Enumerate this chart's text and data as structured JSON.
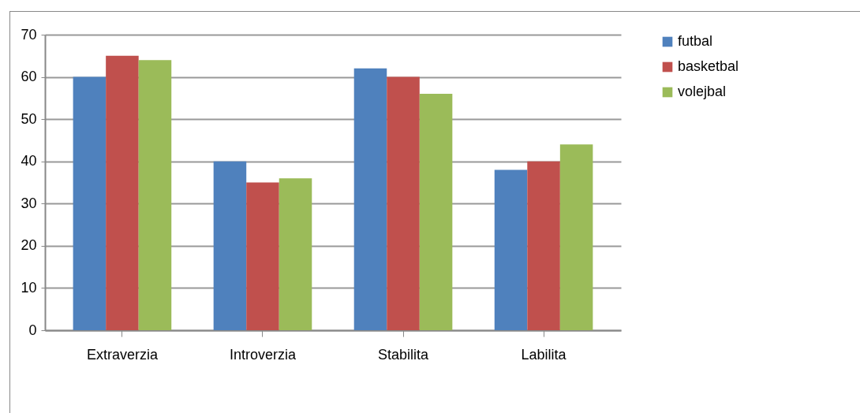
{
  "chart_data": {
    "type": "bar",
    "categories": [
      "Extraverzia",
      "Introverzia",
      "Stabilita",
      "Labilita"
    ],
    "series": [
      {
        "name": "futbal",
        "color": "#4f81bd",
        "values": [
          60,
          40,
          62,
          38
        ]
      },
      {
        "name": "basketbal",
        "color": "#c0504d",
        "values": [
          65,
          35,
          60,
          40
        ]
      },
      {
        "name": "volejbal",
        "color": "#9bbb59",
        "values": [
          64,
          36,
          56,
          44
        ]
      }
    ],
    "ylim": [
      0,
      70
    ],
    "yticks": [
      0,
      10,
      20,
      30,
      40,
      50,
      60,
      70
    ],
    "grid": "y",
    "legend": "right"
  }
}
